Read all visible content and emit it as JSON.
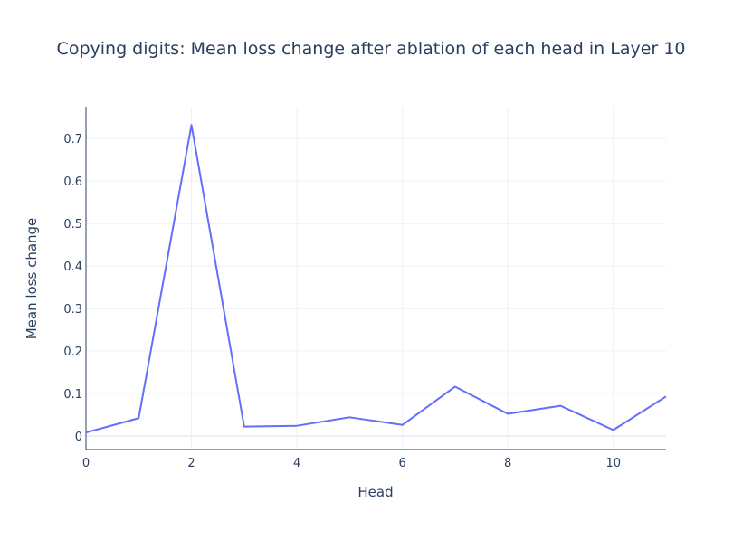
{
  "chart_data": {
    "type": "line",
    "title": "Copying digits: Mean loss change after ablation of each head in Layer 10",
    "xlabel": "Head",
    "ylabel": "Mean loss change",
    "x": [
      0,
      1,
      2,
      3,
      4,
      5,
      6,
      7,
      8,
      9,
      10,
      11
    ],
    "series": [
      {
        "values": [
          0.008,
          0.042,
          0.732,
          0.022,
          0.024,
          0.044,
          0.026,
          0.116,
          0.052,
          0.071,
          0.014,
          0.093
        ]
      }
    ],
    "xlim": [
      0,
      11
    ],
    "ylim": [
      -0.032,
      0.775
    ],
    "x_ticks": [
      {
        "value": 0,
        "label": "0"
      },
      {
        "value": 2,
        "label": "2"
      },
      {
        "value": 4,
        "label": "4"
      },
      {
        "value": 6,
        "label": "6"
      },
      {
        "value": 8,
        "label": "8"
      },
      {
        "value": 10,
        "label": "10"
      }
    ],
    "y_ticks": [
      {
        "value": 0,
        "label": "0"
      },
      {
        "value": 0.1,
        "label": "0.1"
      },
      {
        "value": 0.2,
        "label": "0.2"
      },
      {
        "value": 0.3,
        "label": "0.3"
      },
      {
        "value": 0.4,
        "label": "0.4"
      },
      {
        "value": 0.5,
        "label": "0.5"
      },
      {
        "value": 0.6,
        "label": "0.6"
      },
      {
        "value": 0.7,
        "label": "0.7"
      }
    ],
    "grid": true,
    "legend": false,
    "colors": {
      "line": "#636efa",
      "grid": "#ebf0f8",
      "zeroline": "#ebf0f8",
      "axis": "#2a3f5f",
      "text": "#2a3f5f",
      "background": "#ffffff"
    }
  }
}
